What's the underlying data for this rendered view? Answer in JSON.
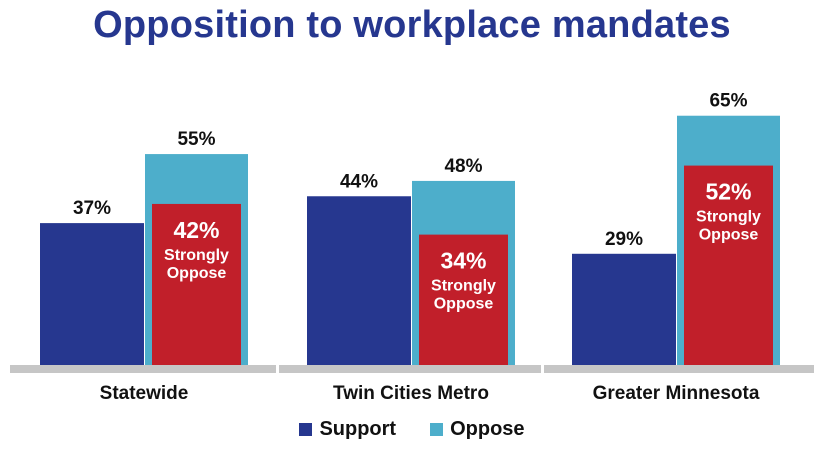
{
  "colors": {
    "support": "#26378f",
    "oppose": "#4daecb",
    "strongly": "#c11f2a",
    "title": "#26378f",
    "baseline": "#c6c6c6",
    "text": "#111111"
  },
  "chart_data": {
    "type": "bar",
    "title": "Opposition to workplace mandates",
    "categories": [
      "Statewide",
      "Twin Cities Metro",
      "Greater Minnesota"
    ],
    "series": [
      {
        "name": "Support",
        "values": [
          37,
          44,
          29
        ]
      },
      {
        "name": "Oppose",
        "values": [
          55,
          48,
          65
        ]
      }
    ],
    "strongly_oppose": {
      "values": [
        42,
        34,
        52
      ],
      "label": "Strongly Oppose",
      "value_labels": [
        "42%",
        "34%",
        "52%"
      ]
    },
    "value_labels": {
      "Support": [
        "37%",
        "44%",
        "29%"
      ],
      "Oppose": [
        "55%",
        "48%",
        "65%"
      ]
    },
    "ylim": [
      0,
      75
    ],
    "legend_position": "bottom-center",
    "grid": false
  }
}
